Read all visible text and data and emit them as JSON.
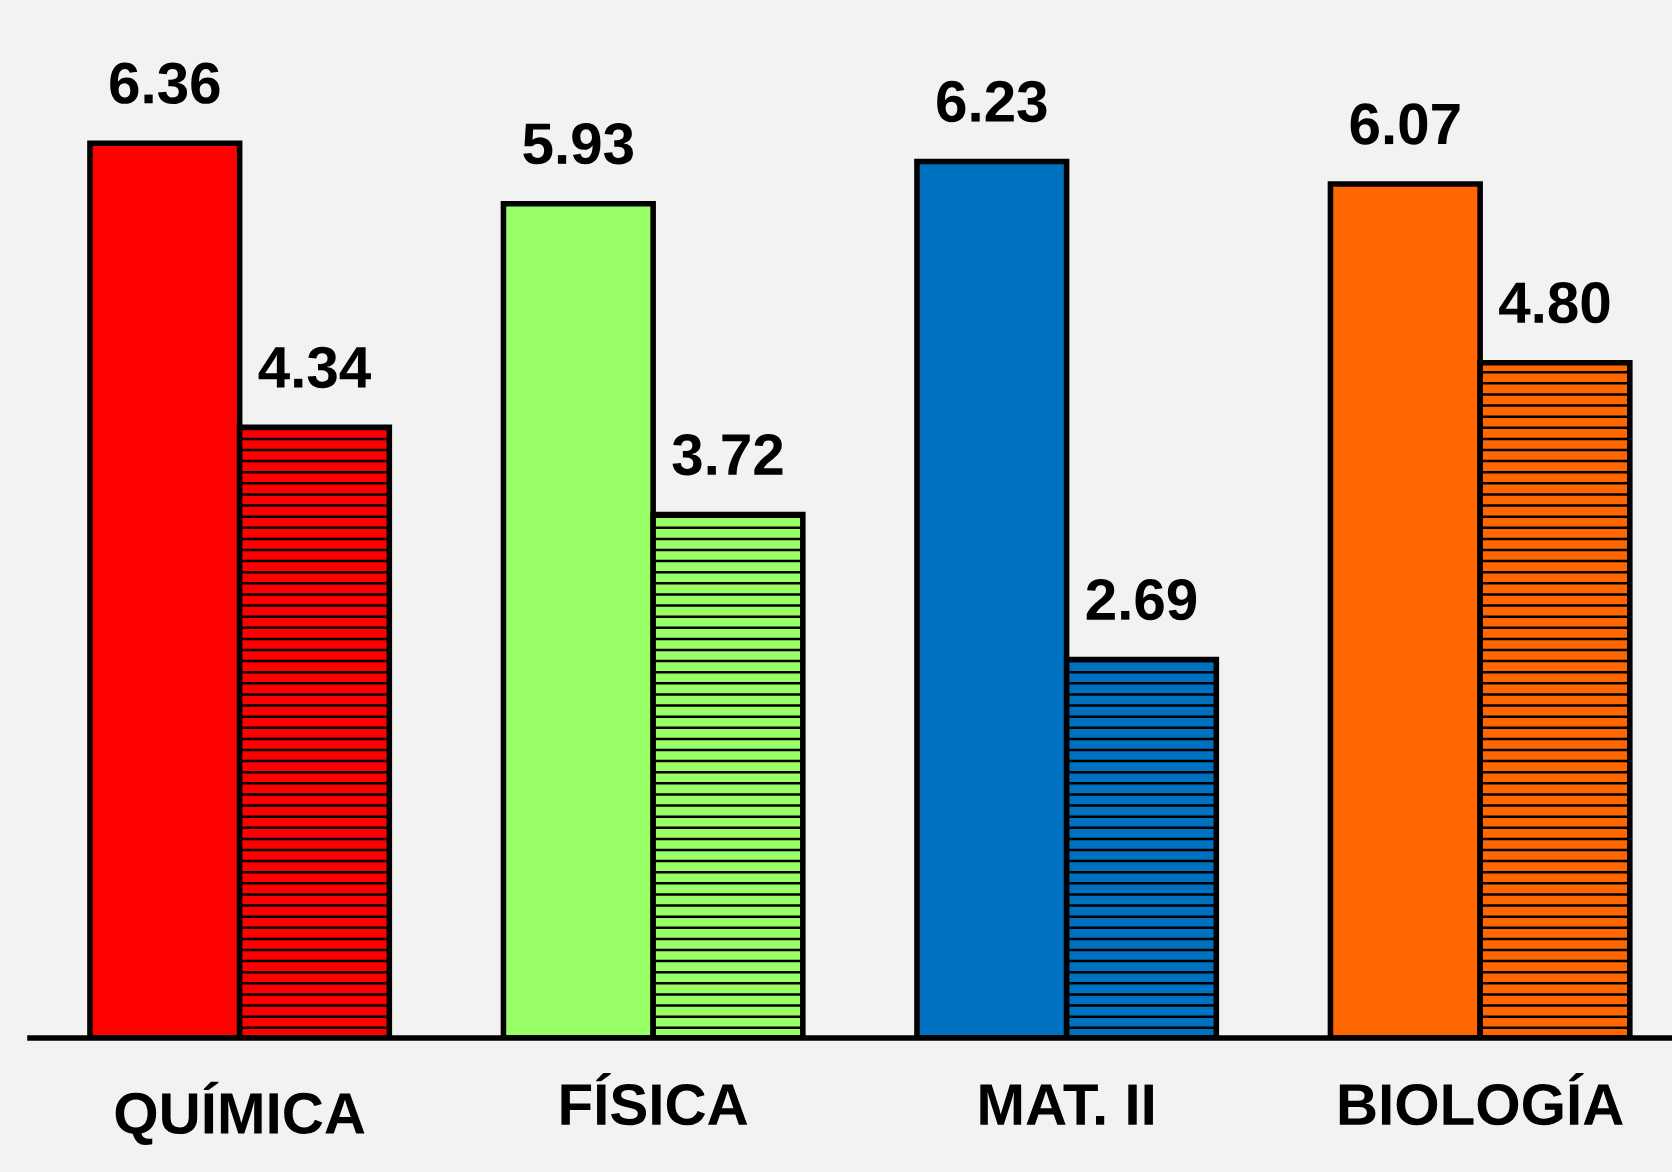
{
  "chart_data": {
    "type": "bar",
    "categories": [
      "QUÍMICA",
      "FÍSICA",
      "MAT. II",
      "BIOLOGÍA"
    ],
    "series": [
      {
        "colors": [
          "#ff0000",
          "#99ff66",
          "#0070c0",
          "#ff6600"
        ],
        "values": [
          6.36,
          5.93,
          6.23,
          6.07
        ]
      },
      {
        "colors": [
          "#ff0000",
          "#99ff66",
          "#0070c0",
          "#ff6600"
        ],
        "values": [
          4.34,
          3.72,
          2.69,
          4.8
        ],
        "value_labels": [
          "4.34",
          "3.72",
          "2.69",
          "4.80"
        ]
      }
    ],
    "data_labels": true,
    "grid": false,
    "legend": false,
    "tick_labels": "x"
  }
}
